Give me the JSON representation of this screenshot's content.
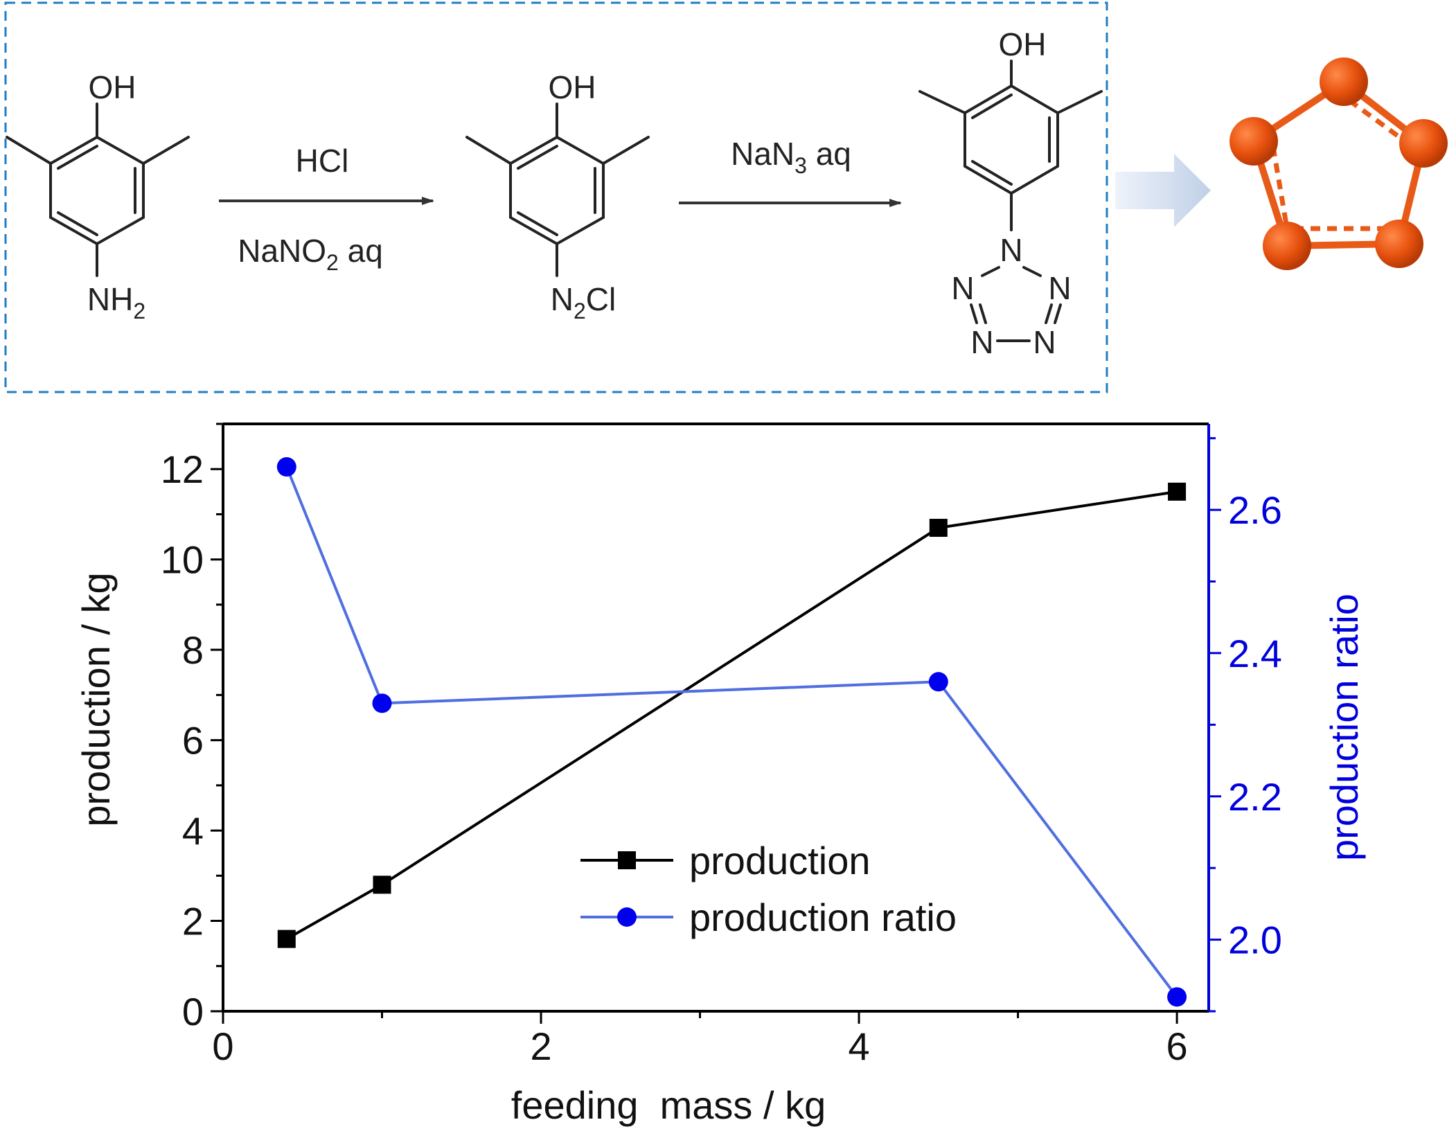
{
  "scheme": {
    "compounds": [
      {
        "top": "OH",
        "bottom_main": "NH",
        "bottom_sub": "2"
      },
      {
        "top": "OH",
        "bottom_pre": "N",
        "bottom_sub": "2",
        "bottom_post": "Cl"
      },
      {
        "top": "OH",
        "tetrazole_atoms": [
          "N",
          "N",
          "N",
          "N",
          "N"
        ]
      }
    ],
    "arrows": [
      {
        "above": "HCl",
        "below_pre": "NaNO",
        "below_sub": "2",
        "below_post": " aq"
      },
      {
        "above_pre": "NaN",
        "above_sub": "3",
        "above_post": " aq",
        "below": ""
      }
    ],
    "colors": {
      "box": "#1f7fc0",
      "arrow": "#c9d6ea",
      "ring": "#e85a17"
    }
  },
  "chart_data": {
    "type": "line",
    "xlabel": "feeding  mass / kg",
    "ylabel_left": "production / kg",
    "ylabel_right": "production ratio",
    "xlim": [
      0,
      6.2
    ],
    "ylim_left": [
      0,
      13
    ],
    "ylim_right": [
      1.9,
      2.72
    ],
    "x_ticks": [
      0,
      2,
      4,
      6
    ],
    "y_ticks_left": [
      0,
      2,
      4,
      6,
      8,
      10,
      12
    ],
    "y_ticks_right": [
      2.0,
      2.2,
      2.4,
      2.6
    ],
    "x_tick_labels": [
      "0",
      "2",
      "4",
      "6"
    ],
    "y_tick_labels_left": [
      "0",
      "2",
      "4",
      "6",
      "8",
      "10",
      "12"
    ],
    "y_tick_labels_right": [
      "2.0",
      "2.2",
      "2.4",
      "2.6"
    ],
    "series": [
      {
        "name": "production",
        "axis": "left",
        "marker": "square",
        "color": "#000000",
        "x": [
          0.4,
          1.0,
          4.5,
          6.0
        ],
        "values": [
          1.6,
          2.8,
          10.7,
          11.5
        ]
      },
      {
        "name": "production ratio",
        "axis": "right",
        "marker": "circle",
        "color": "#0000ee",
        "line_color": "#4f6ee0",
        "x": [
          0.4,
          1.0,
          4.5,
          6.0
        ],
        "values": [
          2.66,
          2.33,
          2.36,
          1.92
        ]
      }
    ],
    "legend": {
      "position": "bottom-center"
    },
    "right_axis_color": "#0000dd"
  }
}
